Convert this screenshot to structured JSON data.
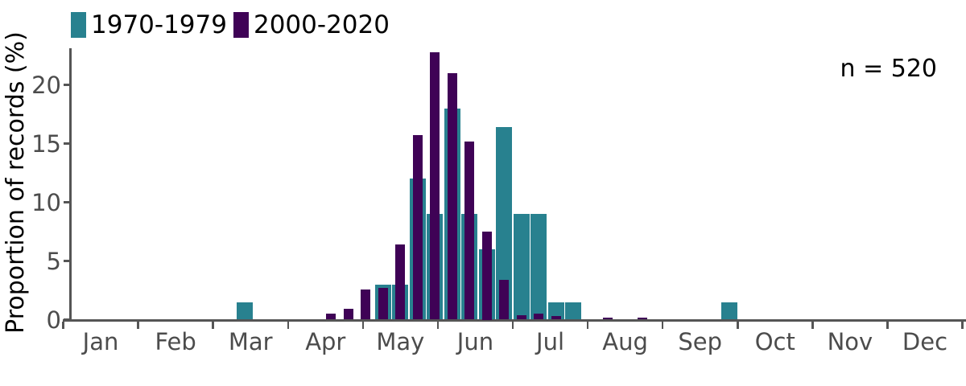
{
  "legend": {
    "items": [
      {
        "label": "1970-1979",
        "color": "#28818F"
      },
      {
        "label": "2000-2020",
        "color": "#3F0256"
      }
    ]
  },
  "annotation": {
    "text": "n = 520"
  },
  "y_axis": {
    "label": "Proportion of records (%)",
    "ticks": [
      0,
      5,
      10,
      15,
      20
    ]
  },
  "x_axis": {
    "months": [
      "Jan",
      "Feb",
      "Mar",
      "Apr",
      "May",
      "Jun",
      "Jul",
      "Aug",
      "Sep",
      "Oct",
      "Nov",
      "Dec"
    ]
  },
  "chart_data": {
    "type": "bar",
    "subtype": "overlaid-histogram",
    "bin_unit": "week-of-year",
    "title": "",
    "xlabel": "",
    "ylabel": "Proportion of records (%)",
    "ylim": [
      0,
      23.5
    ],
    "grid": false,
    "legend_position": "top-left",
    "annotation": "n = 520",
    "x_tick_labels": [
      "Jan",
      "Feb",
      "Mar",
      "Apr",
      "May",
      "Jun",
      "Jul",
      "Aug",
      "Sep",
      "Oct",
      "Nov",
      "Dec"
    ],
    "y_tick_values": [
      0,
      5,
      10,
      15,
      20
    ],
    "weeks": [
      11,
      16,
      17,
      18,
      19,
      20,
      21,
      22,
      23,
      24,
      25,
      26,
      27,
      28,
      29,
      30,
      32,
      34,
      39
    ],
    "series": [
      {
        "name": "1970-1979",
        "color": "#28818F",
        "values": [
          1.5,
          0,
          0,
          0,
          3.0,
          3.0,
          12.0,
          9.0,
          18.0,
          9.0,
          6.0,
          16.4,
          9.0,
          9.0,
          1.5,
          1.5,
          0,
          0,
          1.5
        ]
      },
      {
        "name": "2000-2020",
        "color": "#3F0256",
        "values": [
          0,
          0.5,
          0.9,
          2.6,
          2.7,
          6.4,
          15.7,
          22.8,
          21.0,
          15.2,
          7.5,
          3.4,
          0.4,
          0.5,
          0.3,
          0,
          0.2,
          0.2,
          0
        ]
      }
    ]
  }
}
